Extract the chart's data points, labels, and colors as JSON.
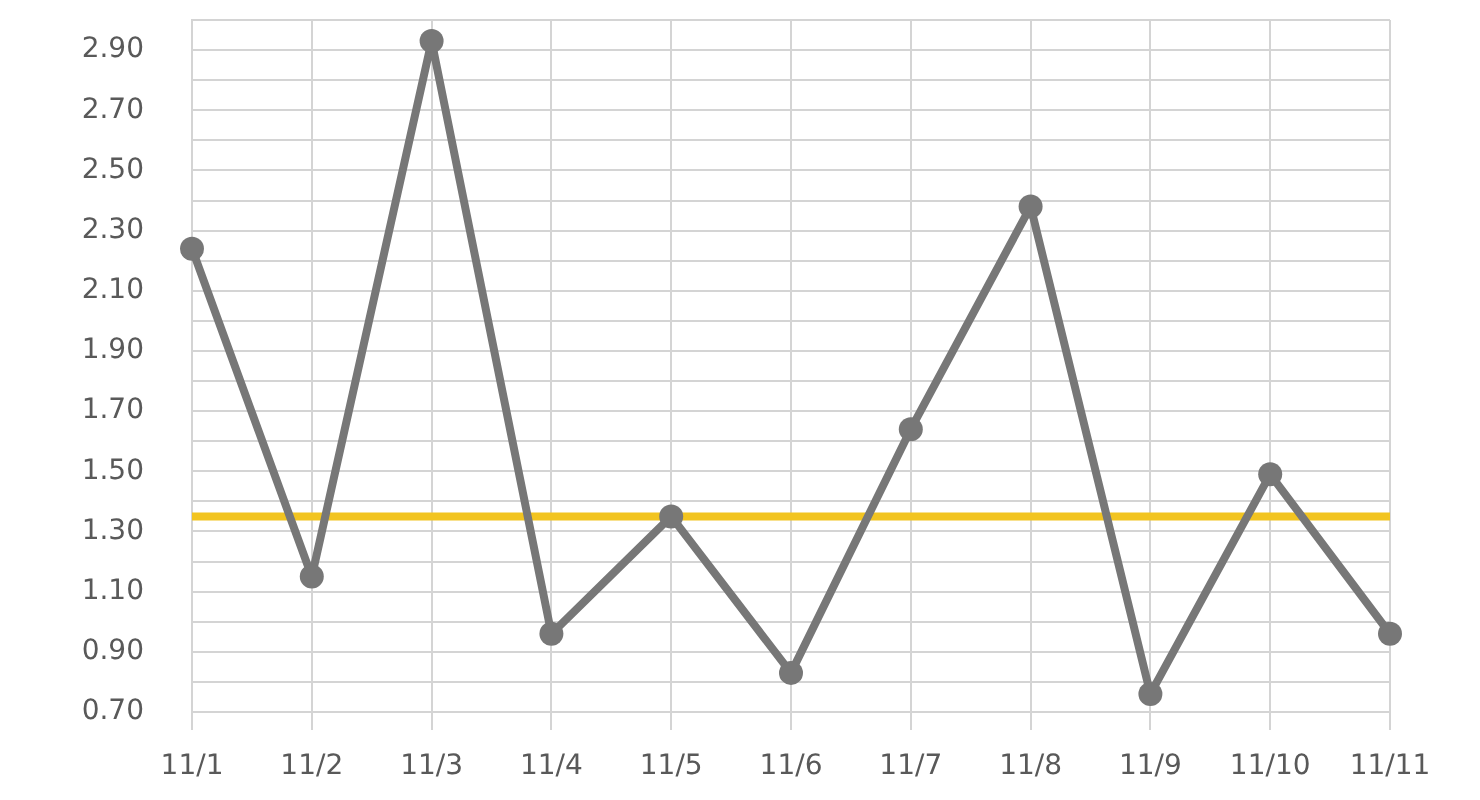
{
  "chart_data": {
    "type": "line",
    "categories": [
      "11/1",
      "11/2",
      "11/3",
      "11/4",
      "11/5",
      "11/6",
      "11/7",
      "11/8",
      "11/9",
      "11/10",
      "11/11"
    ],
    "series": [
      {
        "color": "#777777",
        "values": [
          2.24,
          1.15,
          2.93,
          0.96,
          1.35,
          0.83,
          1.64,
          2.38,
          0.76,
          1.49,
          0.96
        ]
      }
    ],
    "ylim": [
      0.7,
      3.0
    ],
    "yticks": [
      {
        "value": 0.7,
        "label": "0.70"
      },
      {
        "value": 0.8,
        "label": null
      },
      {
        "value": 0.9,
        "label": "0.90"
      },
      {
        "value": 1.0,
        "label": null
      },
      {
        "value": 1.1,
        "label": "1.10"
      },
      {
        "value": 1.2,
        "label": null
      },
      {
        "value": 1.3,
        "label": "1.30"
      },
      {
        "value": 1.4,
        "label": null
      },
      {
        "value": 1.5,
        "label": "1.50"
      },
      {
        "value": 1.6,
        "label": null
      },
      {
        "value": 1.7,
        "label": "1.70"
      },
      {
        "value": 1.8,
        "label": null
      },
      {
        "value": 1.9,
        "label": "1.90"
      },
      {
        "value": 2.0,
        "label": null
      },
      {
        "value": 2.1,
        "label": "2.10"
      },
      {
        "value": 2.2,
        "label": null
      },
      {
        "value": 2.3,
        "label": "2.30"
      },
      {
        "value": 2.4,
        "label": null
      },
      {
        "value": 2.5,
        "label": "2.50"
      },
      {
        "value": 2.6,
        "label": null
      },
      {
        "value": 2.7,
        "label": "2.70"
      },
      {
        "value": 2.8,
        "label": null
      },
      {
        "value": 2.9,
        "label": "2.90"
      },
      {
        "value": 3.0,
        "label": null
      }
    ],
    "ref_lines": [
      {
        "axis": "y",
        "value": 1.35,
        "color": "#f2c420"
      }
    ],
    "grid": true,
    "marker": "circle",
    "line_style": "solid"
  }
}
